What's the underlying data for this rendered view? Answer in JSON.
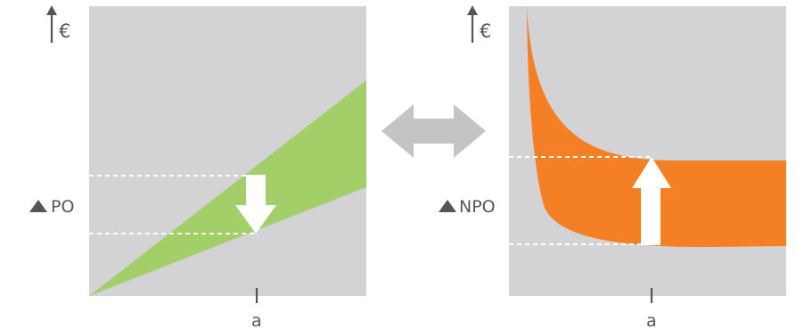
{
  "left_panel": {
    "y_axis_label": "€",
    "delta_label": "PO",
    "x_label": "a",
    "band_color": "#a2cf67",
    "change_direction": "down"
  },
  "right_panel": {
    "y_axis_label": "€",
    "delta_label": "NPO",
    "x_label": "a",
    "band_color": "#f47f24",
    "change_direction": "up"
  },
  "center_icon": "double-headed-arrow-icon",
  "colors": {
    "panel_background": "#d3d3d5",
    "arrow_gray": "#c4c4c6",
    "label_gray": "#555555",
    "delta_triangle": "#555555",
    "dashed_line": "#ffffff"
  }
}
